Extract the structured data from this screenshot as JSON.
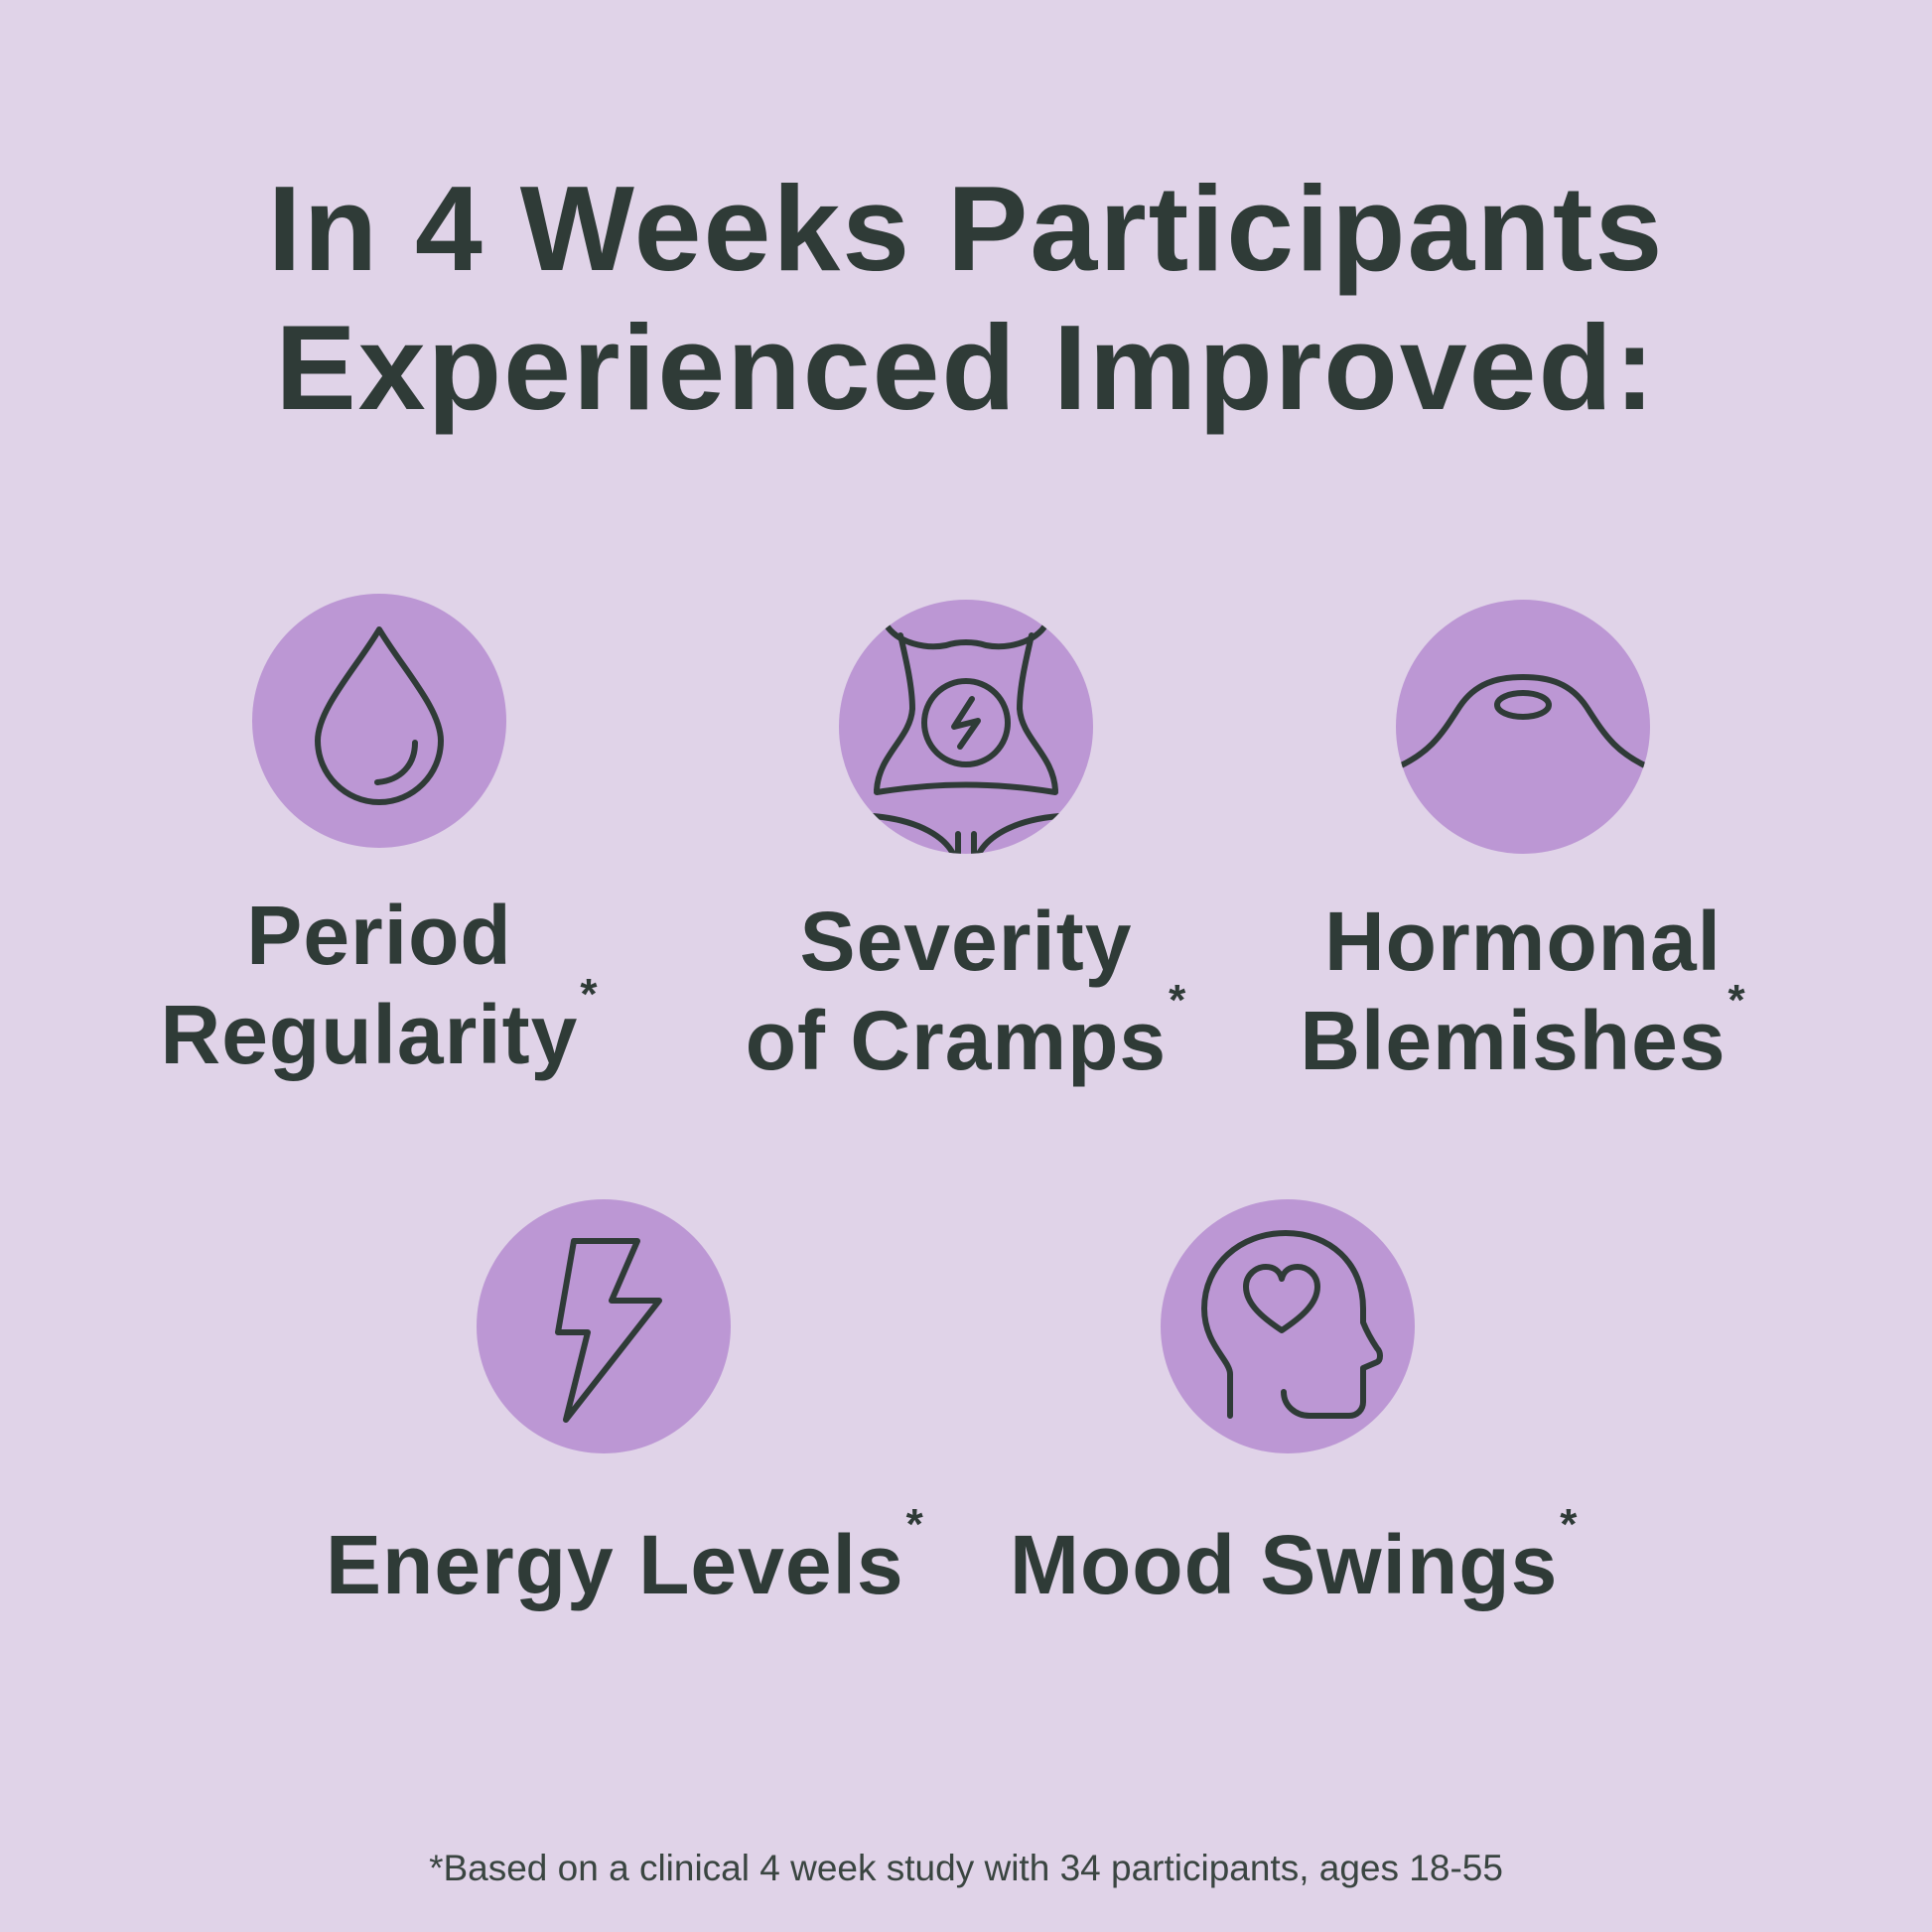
{
  "page": {
    "background_color": "#e0d3e8",
    "circle_color": "#bc97d4",
    "text_color": "#2f3b37"
  },
  "headline": {
    "line1": "In 4 Weeks Participants",
    "line2": "Experienced Improved:"
  },
  "benefits": [
    {
      "icon": "drop-icon",
      "line1": "Period",
      "line2": "Regularity",
      "mark": "*"
    },
    {
      "icon": "abdomen-cramp-icon",
      "line1": "Severity",
      "line2": "of Cramps",
      "mark": "*"
    },
    {
      "icon": "skin-blemish-icon",
      "line1": "Hormonal",
      "line2": "Blemishes",
      "mark": "*"
    },
    {
      "icon": "lightning-bolt-icon",
      "line1": "Energy Levels",
      "mark": "*"
    },
    {
      "icon": "head-heart-icon",
      "line1": "Mood Swings",
      "mark": "*"
    }
  ],
  "footnote": "*Based on a clinical 4 week study with 34 participants, ages 18-55"
}
